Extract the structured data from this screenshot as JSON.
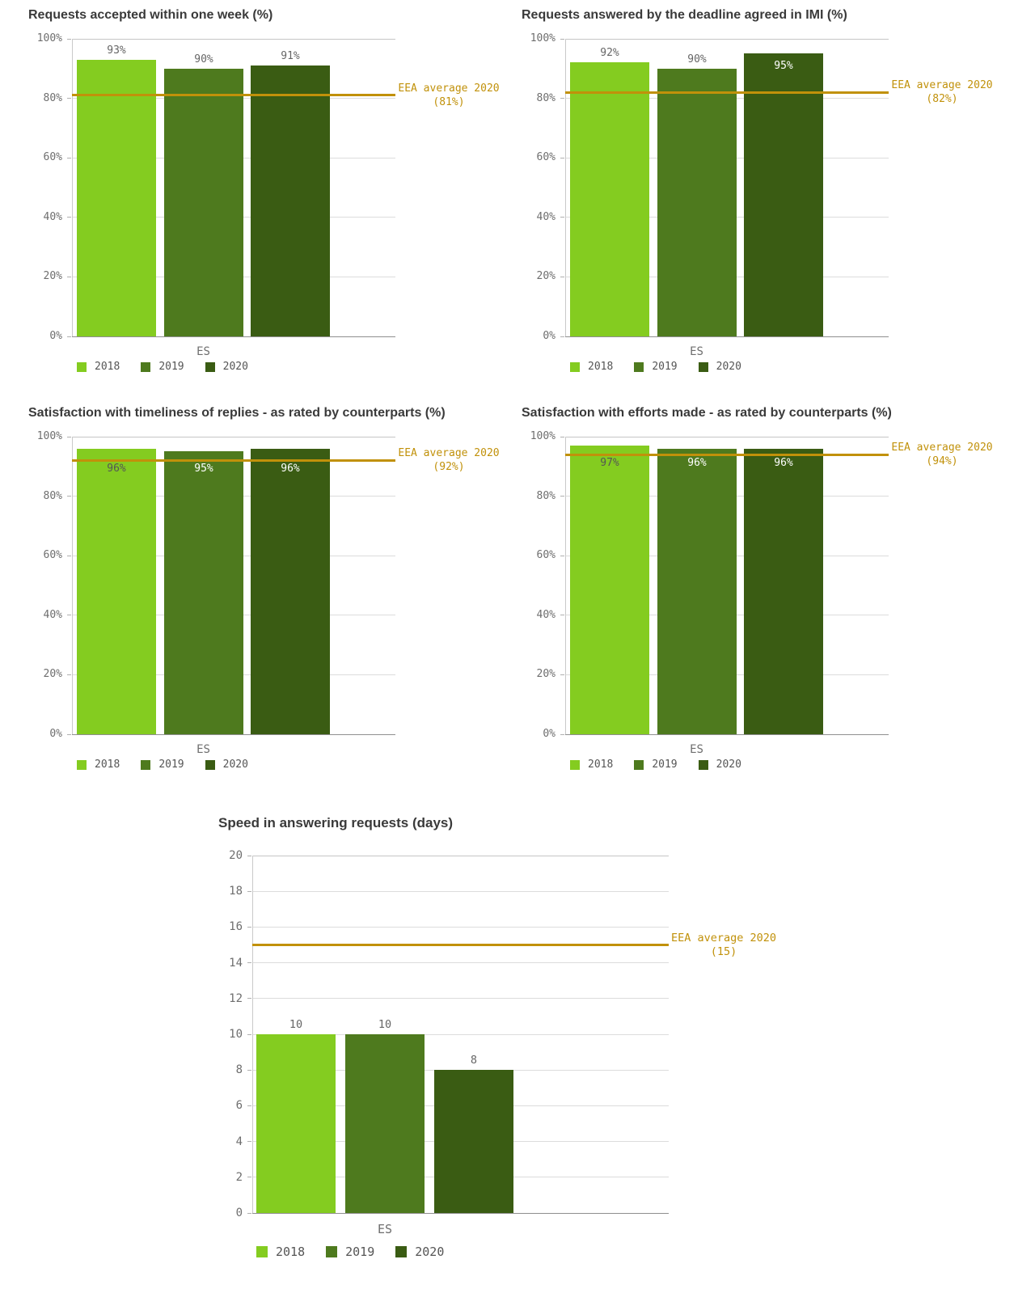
{
  "colors": {
    "background": "#ffffff",
    "title_text": "#3a3a3a",
    "axis_text": "#6e6e6e",
    "value_label_text": "#666666",
    "value_label_inside_light": "#555555",
    "value_label_inside_dark": "#ffffff",
    "gridline": "#dcdcdc",
    "axis_line": "#8f8f8f",
    "series_2018": "#84cc20",
    "series_2019": "#4e7a1e",
    "series_2020": "#3a5c13",
    "reference": "#c1910a"
  },
  "chart_data": [
    {
      "type": "bar",
      "title": "Requests accepted within one week (%)",
      "categories": [
        "ES"
      ],
      "series": [
        {
          "name": "2018",
          "color": "#84cc20",
          "values": [
            93
          ],
          "labels": [
            "93%"
          ]
        },
        {
          "name": "2019",
          "color": "#4e7a1e",
          "values": [
            90
          ],
          "labels": [
            "90%"
          ]
        },
        {
          "name": "2020",
          "color": "#3a5c13",
          "values": [
            91
          ],
          "labels": [
            "91%"
          ]
        }
      ],
      "xlabel": "",
      "ylabel": "",
      "ylim": [
        0,
        100
      ],
      "yticks": {
        "values": [
          0,
          20,
          40,
          60,
          80,
          100
        ],
        "labels": [
          "0%",
          "20%",
          "40%",
          "60%",
          "80%",
          "100%"
        ]
      },
      "grid": true,
      "legend_position": "bottom",
      "reference_line": {
        "value": 81,
        "color": "#c1910a",
        "label": [
          "EEA average 2020",
          "(81%)"
        ]
      }
    },
    {
      "type": "bar",
      "title": "Requests answered by the deadline agreed in IMI (%)",
      "categories": [
        "ES"
      ],
      "series": [
        {
          "name": "2018",
          "color": "#84cc20",
          "values": [
            92
          ],
          "labels": [
            "92%"
          ]
        },
        {
          "name": "2019",
          "color": "#4e7a1e",
          "values": [
            90
          ],
          "labels": [
            "90%"
          ]
        },
        {
          "name": "2020",
          "color": "#3a5c13",
          "values": [
            95
          ],
          "labels": [
            "95%"
          ]
        }
      ],
      "xlabel": "",
      "ylabel": "",
      "ylim": [
        0,
        100
      ],
      "yticks": {
        "values": [
          0,
          20,
          40,
          60,
          80,
          100
        ],
        "labels": [
          "0%",
          "20%",
          "40%",
          "60%",
          "80%",
          "100%"
        ]
      },
      "grid": true,
      "legend_position": "bottom",
      "reference_line": {
        "value": 82,
        "color": "#c1910a",
        "label": [
          "EEA average 2020",
          "(82%)"
        ]
      }
    },
    {
      "type": "bar",
      "title": "Satisfaction with timeliness of replies - as rated by counterparts (%)",
      "categories": [
        "ES"
      ],
      "series": [
        {
          "name": "2018",
          "color": "#84cc20",
          "values": [
            96
          ],
          "labels": [
            "96%"
          ]
        },
        {
          "name": "2019",
          "color": "#4e7a1e",
          "values": [
            95
          ],
          "labels": [
            "95%"
          ]
        },
        {
          "name": "2020",
          "color": "#3a5c13",
          "values": [
            96
          ],
          "labels": [
            "96%"
          ]
        }
      ],
      "xlabel": "",
      "ylabel": "",
      "ylim": [
        0,
        100
      ],
      "yticks": {
        "values": [
          0,
          20,
          40,
          60,
          80,
          100
        ],
        "labels": [
          "0%",
          "20%",
          "40%",
          "60%",
          "80%",
          "100%"
        ]
      },
      "grid": true,
      "legend_position": "bottom",
      "reference_line": {
        "value": 92,
        "color": "#c1910a",
        "label": [
          "EEA average 2020",
          "(92%)"
        ]
      }
    },
    {
      "type": "bar",
      "title": "Satisfaction with efforts made - as rated by counterparts (%)",
      "categories": [
        "ES"
      ],
      "series": [
        {
          "name": "2018",
          "color": "#84cc20",
          "values": [
            97
          ],
          "labels": [
            "97%"
          ]
        },
        {
          "name": "2019",
          "color": "#4e7a1e",
          "values": [
            96
          ],
          "labels": [
            "96%"
          ]
        },
        {
          "name": "2020",
          "color": "#3a5c13",
          "values": [
            96
          ],
          "labels": [
            "96%"
          ]
        }
      ],
      "xlabel": "",
      "ylabel": "",
      "ylim": [
        0,
        100
      ],
      "yticks": {
        "values": [
          0,
          20,
          40,
          60,
          80,
          100
        ],
        "labels": [
          "0%",
          "20%",
          "40%",
          "60%",
          "80%",
          "100%"
        ]
      },
      "grid": true,
      "legend_position": "bottom",
      "reference_line": {
        "value": 94,
        "color": "#c1910a",
        "label": [
          "EEA average 2020",
          "(94%)"
        ]
      }
    },
    {
      "type": "bar",
      "title": "Speed in answering requests (days)",
      "categories": [
        "ES"
      ],
      "series": [
        {
          "name": "2018",
          "color": "#84cc20",
          "values": [
            10
          ],
          "labels": [
            "10"
          ]
        },
        {
          "name": "2019",
          "color": "#4e7a1e",
          "values": [
            10
          ],
          "labels": [
            "10"
          ]
        },
        {
          "name": "2020",
          "color": "#3a5c13",
          "values": [
            8
          ],
          "labels": [
            "8"
          ]
        }
      ],
      "xlabel": "",
      "ylabel": "",
      "ylim": [
        0,
        20
      ],
      "yticks": {
        "values": [
          0,
          2,
          4,
          6,
          8,
          10,
          12,
          14,
          16,
          18,
          20
        ],
        "labels": [
          "0",
          "2",
          "4",
          "6",
          "8",
          "10",
          "12",
          "14",
          "16",
          "18",
          "20"
        ]
      },
      "grid": true,
      "legend_position": "bottom",
      "reference_line": {
        "value": 15,
        "color": "#c1910a",
        "label": [
          "EEA average 2020",
          "(15)"
        ]
      }
    }
  ]
}
